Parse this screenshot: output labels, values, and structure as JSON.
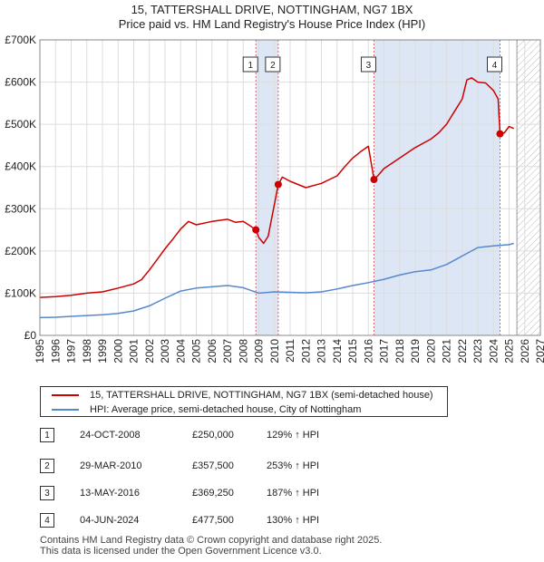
{
  "chart_data": {
    "type": "line",
    "title": "15, TATTERSHALL DRIVE, NOTTINGHAM, NG7 1BX",
    "subtitle": "Price paid vs. HM Land Registry's House Price Index (HPI)",
    "xlim": [
      1995,
      2027
    ],
    "ylim": [
      0,
      700000
    ],
    "x_ticks": [
      1995,
      1996,
      1997,
      1998,
      1999,
      2000,
      2001,
      2002,
      2003,
      2004,
      2005,
      2006,
      2007,
      2008,
      2009,
      2010,
      2011,
      2012,
      2013,
      2014,
      2015,
      2016,
      2017,
      2018,
      2019,
      2020,
      2021,
      2022,
      2023,
      2024,
      2025,
      2026,
      2027
    ],
    "y_ticks": [
      {
        "value": 0,
        "label": "£0"
      },
      {
        "value": 100000,
        "label": "£100K"
      },
      {
        "value": 200000,
        "label": "£200K"
      },
      {
        "value": 300000,
        "label": "£300K"
      },
      {
        "value": 400000,
        "label": "£400K"
      },
      {
        "value": 500000,
        "label": "£500K"
      },
      {
        "value": 600000,
        "label": "£600K"
      },
      {
        "value": 700000,
        "label": "£700K"
      }
    ],
    "grid": true,
    "future_hatch_from": 2025.5,
    "series": [
      {
        "name": "15, TATTERSHALL DRIVE, NOTTINGHAM, NG7 1BX (semi-detached house)",
        "color": "#cc0000",
        "x": [
          1995,
          1996,
          1997,
          1998,
          1999,
          2000,
          2001,
          2001.5,
          2002,
          2002.5,
          2003,
          2003.5,
          2004,
          2004.5,
          2005,
          2006,
          2007,
          2007.5,
          2008,
          2008.5,
          2008.81,
          2009,
          2009.3,
          2009.6,
          2010.24,
          2010.5,
          2011,
          2012,
          2013,
          2014,
          2014.5,
          2015,
          2015.5,
          2016,
          2016.36,
          2016.6,
          2017,
          2018,
          2019,
          2020,
          2020.5,
          2021,
          2021.5,
          2022,
          2022.3,
          2022.6,
          2023,
          2023.5,
          2024,
          2024.3,
          2024.42,
          2024.7,
          2025,
          2025.3
        ],
        "values": [
          90000,
          92000,
          95000,
          100000,
          103000,
          112000,
          122000,
          132000,
          155000,
          180000,
          205000,
          228000,
          252000,
          270000,
          262000,
          270000,
          275000,
          268000,
          270000,
          258000,
          250000,
          232000,
          218000,
          235000,
          357500,
          375000,
          365000,
          350000,
          360000,
          378000,
          400000,
          420000,
          435000,
          448000,
          369250,
          378000,
          395000,
          420000,
          445000,
          465000,
          480000,
          500000,
          530000,
          560000,
          605000,
          610000,
          600000,
          598000,
          580000,
          560000,
          477500,
          480000,
          495000,
          490000
        ]
      },
      {
        "name": "HPI: Average price, semi-detached house, City of Nottingham",
        "color": "#5588cc",
        "x": [
          1995,
          1996,
          1997,
          1998,
          1999,
          2000,
          2001,
          2002,
          2003,
          2004,
          2005,
          2006,
          2007,
          2008,
          2009,
          2010,
          2011,
          2012,
          2013,
          2014,
          2015,
          2016,
          2017,
          2018,
          2019,
          2020,
          2021,
          2022,
          2023,
          2024,
          2025,
          2025.3
        ],
        "values": [
          42000,
          43000,
          45000,
          47000,
          49000,
          52000,
          58000,
          70000,
          88000,
          105000,
          112000,
          115000,
          118000,
          113000,
          100000,
          103000,
          102000,
          101000,
          103000,
          110000,
          118000,
          125000,
          133000,
          143000,
          151000,
          155000,
          168000,
          188000,
          208000,
          212000,
          215000,
          218000
        ]
      }
    ],
    "sales": [
      {
        "num": "1",
        "x": 2008.81,
        "value": 250000,
        "date": "24-OCT-2008",
        "price": "£250,000",
        "hpi": "129% ↑ HPI"
      },
      {
        "num": "2",
        "x": 2010.24,
        "value": 357500,
        "date": "29-MAR-2010",
        "price": "£357,500",
        "hpi": "253% ↑ HPI"
      },
      {
        "num": "3",
        "x": 2016.36,
        "value": 369250,
        "date": "13-MAY-2016",
        "price": "£369,250",
        "hpi": "187% ↑ HPI"
      },
      {
        "num": "4",
        "x": 2024.42,
        "value": 477500,
        "date": "04-JUN-2024",
        "price": "£477,500",
        "hpi": "130% ↑ HPI"
      }
    ]
  },
  "legend": {
    "property_label": "15, TATTERSHALL DRIVE, NOTTINGHAM, NG7 1BX (semi-detached house)",
    "hpi_label": "HPI: Average price, semi-detached house, City of Nottingham"
  },
  "footer": {
    "line1": "Contains HM Land Registry data © Crown copyright and database right 2025.",
    "line2": "This data is licensed under the Open Government Licence v3.0."
  },
  "colors": {
    "property": "#cc0000",
    "hpi": "#5588cc",
    "shade": "#dde6f5",
    "grid": "#dddddd"
  }
}
